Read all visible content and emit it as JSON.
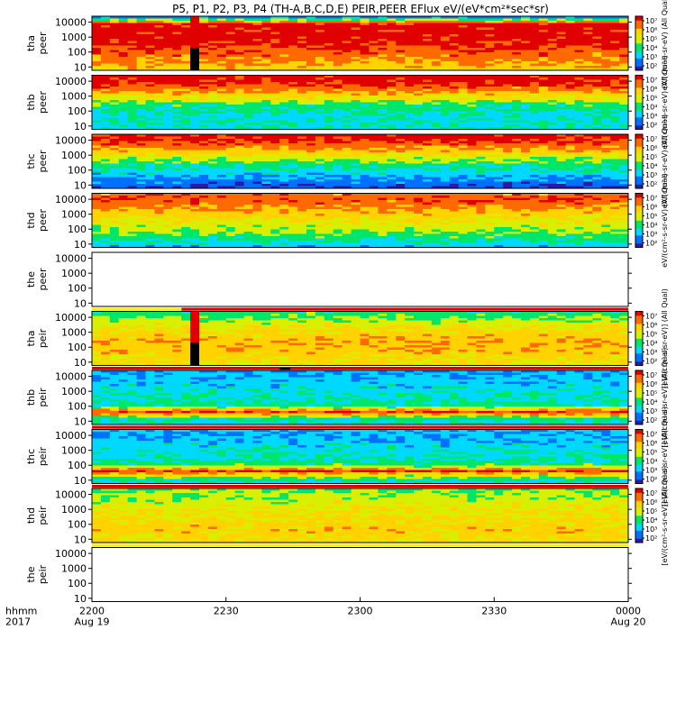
{
  "title": "P5, P1, P2, P3, P4 (TH-A,B,C,D,E) PEIR,PEER EFlux eV/(eV*cm²*sec*sr)",
  "chart_data": {
    "type": "heatmap",
    "y_scale": "log",
    "ylim": [
      6,
      25000
    ],
    "y_ticks": [
      "10",
      "100",
      "1000",
      "10000"
    ],
    "x_ticks": [
      {
        "time": "2200",
        "date": "Aug 19"
      },
      {
        "time": "2230",
        "date": ""
      },
      {
        "time": "2300",
        "date": ""
      },
      {
        "time": "2330",
        "date": ""
      },
      {
        "time": "0000",
        "date": "Aug 20"
      }
    ],
    "x_axis_labels": {
      "line1": "hhmm",
      "line2": "2017"
    },
    "colorbar_ticks": [
      "10²",
      "10³",
      "10⁴",
      "10⁵",
      "10⁶",
      "10⁷"
    ],
    "colorbar_units": {
      "peer": "eV/(cm²-s-sr-eV) (All Qual)",
      "peir": "[eV/(cm²-s-sr-eV)] (All Qual)"
    },
    "colormap": [
      "#2a1aa6",
      "#0070ff",
      "#00d8ff",
      "#00e66a",
      "#d8f000",
      "#ffd200",
      "#ff6a00",
      "#e00000"
    ],
    "panels": [
      {
        "probe": "tha",
        "product": "peer",
        "has_data": true,
        "quality_bar": "none",
        "profile": [
          2,
          7,
          7,
          7,
          7,
          6.7,
          6.3,
          6,
          5.6,
          5.2
        ],
        "gap_fraction": [
          0.167,
          0.187
        ]
      },
      {
        "probe": "thb",
        "product": "peer",
        "has_data": true,
        "quality_bar": "none",
        "profile": [
          7,
          6.8,
          6.2,
          5.4,
          4.6,
          3.6,
          3.2,
          3,
          3,
          3
        ]
      },
      {
        "probe": "thc",
        "product": "peer",
        "has_data": true,
        "quality_bar": "none",
        "profile": [
          7,
          6.7,
          6,
          5.2,
          4.3,
          3.5,
          3,
          2.5,
          2,
          1.4
        ]
      },
      {
        "probe": "thd",
        "product": "peer",
        "has_data": true,
        "quality_bar": "none",
        "profile": [
          6.2,
          6.3,
          6,
          5.5,
          5,
          4.6,
          4.2,
          3.8,
          3.3,
          2.6
        ]
      },
      {
        "probe": "the",
        "product": "peer",
        "has_data": false,
        "quality_bar": "split-yellow-red"
      },
      {
        "probe": "tha",
        "product": "peir",
        "has_data": true,
        "quality_bar": "split-red-white",
        "profile": [
          3.5,
          4,
          4.5,
          5,
          5.3,
          5.5,
          5.5,
          5.3,
          5,
          4.8
        ],
        "gap_fraction": [
          0.167,
          0.187
        ]
      },
      {
        "probe": "thb",
        "product": "peir",
        "has_data": true,
        "quality_bar": "red",
        "profile": [
          2.3,
          2.5,
          2.6,
          2.8,
          3,
          3.2,
          3.5,
          6.8,
          3.5,
          3
        ]
      },
      {
        "probe": "thc",
        "product": "peir",
        "has_data": true,
        "quality_bar": "red",
        "profile": [
          2.3,
          2.4,
          2.6,
          2.8,
          3,
          3.2,
          3.6,
          6.8,
          4,
          3
        ]
      },
      {
        "probe": "thd",
        "product": "peir",
        "has_data": true,
        "quality_bar": "yellow",
        "profile": [
          4,
          4.2,
          4.4,
          4.6,
          4.8,
          5,
          5.2,
          5.3,
          5.2,
          5
        ]
      },
      {
        "probe": "the",
        "product": "peir",
        "has_data": false,
        "quality_bar": "none"
      }
    ]
  }
}
